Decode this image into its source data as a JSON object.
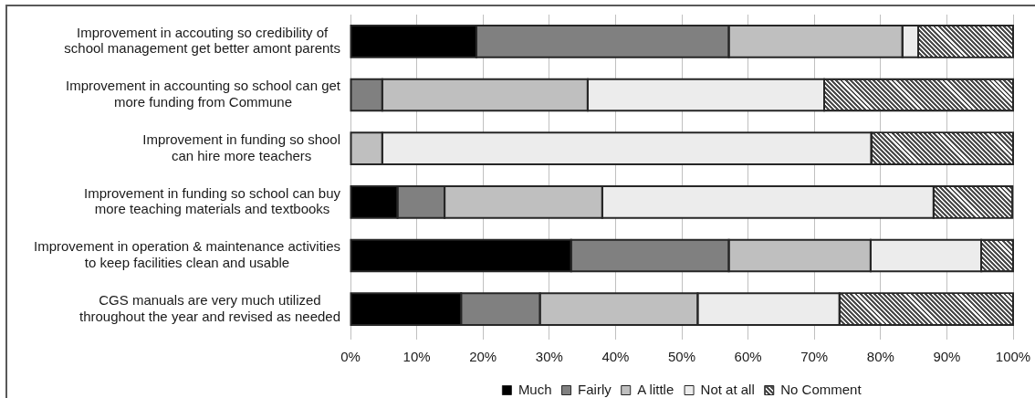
{
  "chart_data": {
    "type": "bar",
    "orientation": "horizontal",
    "stacked": true,
    "categories": [
      "Improvement in accouting so credibility of\nschool management get better amont parents",
      "Improvement in accounting so school can get\nmore funding from Commune",
      "Improvement in funding so shool\ncan hire more teachers",
      "Improvement in funding so school can buy\nmore teaching materials and textbooks",
      "Improvement in operation & maintenance activities\nto keep facilities clean and usable",
      "CGS manuals are very much utilized\nthroughout the year and revised as needed"
    ],
    "series": [
      {
        "name": "Much",
        "color": "#000000",
        "values": [
          19.0,
          0,
          0,
          7.1,
          33.3,
          16.7
        ]
      },
      {
        "name": "Fairly",
        "color": "#808080",
        "values": [
          38.1,
          4.8,
          0,
          7.1,
          23.8,
          11.9
        ]
      },
      {
        "name": "A little",
        "color": "#bfbfbf",
        "values": [
          26.2,
          31.0,
          4.8,
          23.8,
          21.4,
          23.8
        ]
      },
      {
        "name": "Not at all",
        "color": "#ececec",
        "values": [
          2.4,
          35.7,
          73.8,
          50.0,
          16.7,
          21.4
        ]
      },
      {
        "name": "No Comment",
        "color": "#4d4d4d",
        "values": [
          14.3,
          28.5,
          21.4,
          11.9,
          4.8,
          26.2
        ]
      }
    ],
    "xlim": [
      0,
      100
    ],
    "xticks": [
      {
        "value": 0,
        "label": "0%"
      },
      {
        "value": 10,
        "label": "10%"
      },
      {
        "value": 20,
        "label": "20%"
      },
      {
        "value": 30,
        "label": "30%"
      },
      {
        "value": 40,
        "label": "40%"
      },
      {
        "value": 50,
        "label": "50%"
      },
      {
        "value": 60,
        "label": "60%"
      },
      {
        "value": 70,
        "label": "70%"
      },
      {
        "value": 80,
        "label": "80%"
      },
      {
        "value": 90,
        "label": "90%"
      },
      {
        "value": 100,
        "label": "100%"
      }
    ],
    "grid": "x",
    "legend": "bottom"
  }
}
